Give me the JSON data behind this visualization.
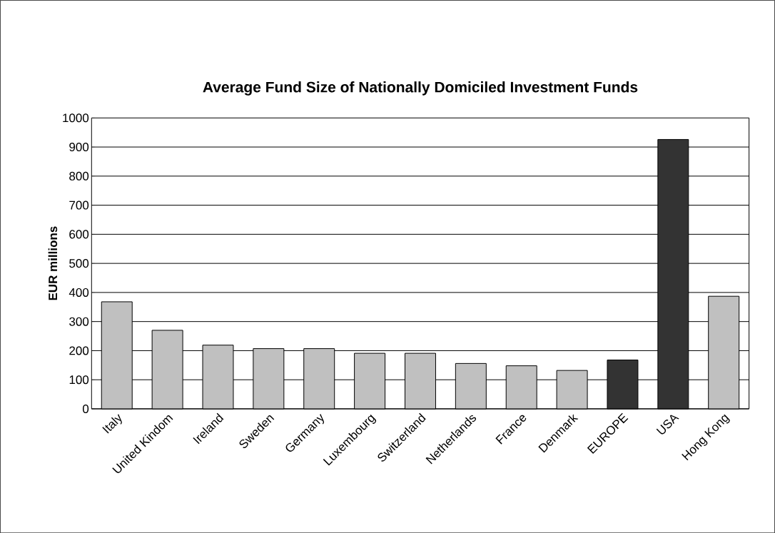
{
  "chart_data": {
    "type": "bar",
    "title": "Average Fund Size of Nationally Domiciled Investment Funds",
    "ylabel": "EUR millions",
    "categories": [
      "Italy",
      "United Kindom",
      "Ireland",
      "Sweden",
      "Germany",
      "Luxembourg",
      "Switzerland",
      "Netherlands",
      "France",
      "Denmark",
      "EUROPE",
      "USA",
      "Hong Kong"
    ],
    "values": [
      368,
      270,
      219,
      207,
      207,
      191,
      191,
      156,
      148,
      132,
      168,
      926,
      387
    ],
    "colors": [
      "#c0c0c0",
      "#c0c0c0",
      "#c0c0c0",
      "#c0c0c0",
      "#c0c0c0",
      "#c0c0c0",
      "#c0c0c0",
      "#c0c0c0",
      "#c0c0c0",
      "#c0c0c0",
      "#333333",
      "#333333",
      "#c0c0c0"
    ],
    "ylim": [
      0,
      1000
    ],
    "yticks": [
      0,
      100,
      200,
      300,
      400,
      500,
      600,
      700,
      800,
      900,
      1000
    ],
    "grid": "y"
  }
}
